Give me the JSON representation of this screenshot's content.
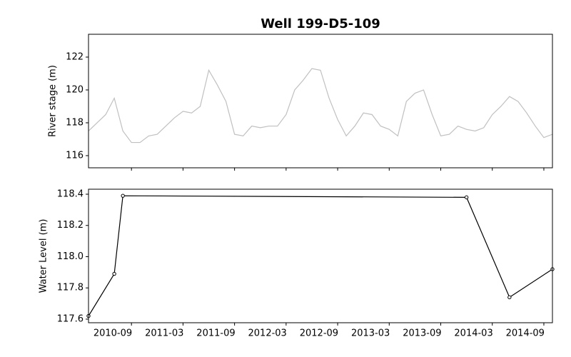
{
  "chart_data": [
    {
      "type": "line",
      "title": "Well 199-D5-109",
      "ylabel": "River stage (m)",
      "x": [
        "2010-04",
        "2010-05",
        "2010-06",
        "2010-07",
        "2010-08",
        "2010-09",
        "2010-10",
        "2010-11",
        "2010-12",
        "2011-01",
        "2011-02",
        "2011-03",
        "2011-04",
        "2011-05",
        "2011-06",
        "2011-07",
        "2011-08",
        "2011-09",
        "2011-10",
        "2011-11",
        "2011-12",
        "2012-01",
        "2012-02",
        "2012-03",
        "2012-04",
        "2012-05",
        "2012-06",
        "2012-07",
        "2012-08",
        "2012-09",
        "2012-10",
        "2012-11",
        "2012-12",
        "2013-01",
        "2013-02",
        "2013-03",
        "2013-04",
        "2013-05",
        "2013-06",
        "2013-07",
        "2013-08",
        "2013-09",
        "2013-10",
        "2013-11",
        "2013-12",
        "2014-01",
        "2014-02",
        "2014-03",
        "2014-04",
        "2014-05",
        "2014-06",
        "2014-07",
        "2014-08",
        "2014-09",
        "2014-10"
      ],
      "series": [
        {
          "color": "#c0c0c0",
          "values": [
            117.5,
            118,
            118.5,
            119.5,
            117.5,
            116.8,
            116.8,
            117.2,
            117.3,
            117.8,
            118.3,
            118.7,
            118.6,
            119,
            121.2,
            120.3,
            119.3,
            117.3,
            117.2,
            117.8,
            117.7,
            117.8,
            117.8,
            118.5,
            120,
            120.6,
            121.3,
            121.2,
            119.5,
            118.2,
            117.2,
            117.8,
            118.6,
            118.5,
            117.8,
            117.6,
            117.2,
            119.3,
            119.8,
            120,
            118.5,
            117.2,
            117.3,
            117.8,
            117.6,
            117.5,
            117.7,
            118.5,
            119,
            119.6,
            119.3,
            118.6,
            117.8,
            117.1,
            117.3
          ]
        }
      ],
      "xlim": [
        "2010-04",
        "2014-10"
      ],
      "ylim": [
        115.26,
        123.39
      ],
      "yticks": [
        116,
        118,
        120,
        122
      ]
    },
    {
      "type": "line",
      "ylabel": "Water Level (m)",
      "marker": "o",
      "x": [
        "2010-04",
        "2010-07",
        "2010-08",
        "2013-12",
        "2014-05",
        "2014-10"
      ],
      "series": [
        {
          "color": "#000000",
          "values": [
            117.62,
            117.89,
            118.39,
            118.38,
            117.74,
            117.92
          ]
        }
      ],
      "xlim": [
        "2010-04",
        "2014-10"
      ],
      "xticks": [
        "2010-09",
        "2011-03",
        "2011-09",
        "2012-03",
        "2012-09",
        "2013-03",
        "2013-09",
        "2014-03",
        "2014-09"
      ],
      "ylim": [
        117.577,
        118.432
      ],
      "yticks": [
        117.6,
        117.8,
        {
          "value": 118,
          "label": "118.0"
        },
        118.2,
        118.4
      ]
    }
  ]
}
